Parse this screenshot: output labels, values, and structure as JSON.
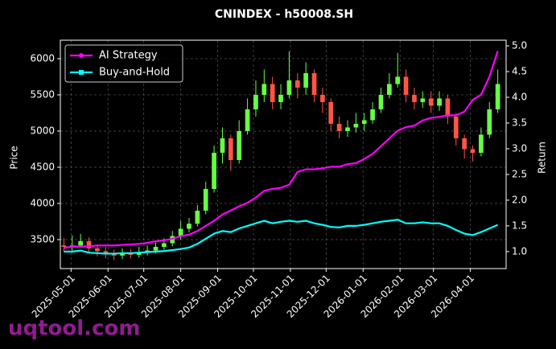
{
  "chart_data": {
    "type": "candlestick",
    "title": "CNINDEX - h50008.SH",
    "ylabel": "Price",
    "y2label": "Return",
    "watermark": "uqtool.com",
    "grid": true,
    "legend": "upper left",
    "up_color": "#66ff44",
    "down_color": "#ff5544",
    "xlim": [
      "2025-04-22",
      "2026-05-01"
    ],
    "xticks": [
      "2025-05-01",
      "2025-06-01",
      "2025-07-01",
      "2025-08-01",
      "2025-09-01",
      "2025-10-01",
      "2025-11-01",
      "2025-12-01",
      "2026-01-01",
      "2026-02-01",
      "2026-03-01",
      "2026-04-01"
    ],
    "ylim": [
      3100,
      6255
    ],
    "yticks": [
      3500,
      4000,
      4500,
      5000,
      5500,
      6000
    ],
    "y2lim": [
      0.67,
      5.11
    ],
    "y2ticks": [
      {
        "value": 1,
        "label": "1.0"
      },
      1.5,
      {
        "value": 2,
        "label": "2.0"
      },
      2.5,
      {
        "value": 3,
        "label": "3.0"
      },
      3.5,
      {
        "value": 4,
        "label": "4.0"
      },
      4.5,
      {
        "value": 5,
        "label": "5.0"
      }
    ],
    "x": [
      "2025-04-25",
      "2025-05-02",
      "2025-05-09",
      "2025-05-16",
      "2025-05-23",
      "2025-05-30",
      "2025-06-06",
      "2025-06-13",
      "2025-06-20",
      "2025-06-27",
      "2025-07-04",
      "2025-07-11",
      "2025-07-18",
      "2025-07-25",
      "2025-08-01",
      "2025-08-08",
      "2025-08-15",
      "2025-08-22",
      "2025-08-29",
      "2025-09-05",
      "2025-09-12",
      "2025-09-19",
      "2025-09-26",
      "2025-10-03",
      "2025-10-10",
      "2025-10-17",
      "2025-10-24",
      "2025-10-31",
      "2025-11-07",
      "2025-11-14",
      "2025-11-21",
      "2025-11-28",
      "2025-12-05",
      "2025-12-12",
      "2025-12-19",
      "2025-12-26",
      "2026-01-02",
      "2026-01-09",
      "2026-01-16",
      "2026-01-23",
      "2026-01-30",
      "2026-02-06",
      "2026-02-13",
      "2026-02-20",
      "2026-02-27",
      "2026-03-06",
      "2026-03-13",
      "2026-03-20",
      "2026-03-27",
      "2026-04-03",
      "2026-04-10",
      "2026-04-17",
      "2026-04-24"
    ],
    "open": [
      3420,
      3400,
      3420,
      3480,
      3380,
      3340,
      3300,
      3280,
      3310,
      3290,
      3330,
      3350,
      3400,
      3450,
      3550,
      3650,
      3720,
      3900,
      4200,
      4700,
      4900,
      4600,
      5000,
      5300,
      5500,
      5650,
      5400,
      5500,
      5700,
      5600,
      5800,
      5500,
      5400,
      5100,
      5000,
      5050,
      5100,
      5150,
      5300,
      5500,
      5650,
      5750,
      5500,
      5400,
      5450,
      5350,
      5450,
      5200,
      4900,
      4750,
      4700,
      4950,
      5300
    ],
    "high": [
      3520,
      3560,
      3580,
      3530,
      3430,
      3400,
      3360,
      3380,
      3370,
      3400,
      3420,
      3460,
      3520,
      3620,
      3760,
      3800,
      3980,
      4300,
      4800,
      5050,
      4950,
      5150,
      5450,
      5700,
      5850,
      5750,
      5650,
      6100,
      5800,
      5950,
      5850,
      5600,
      5450,
      5200,
      5150,
      5250,
      5250,
      5400,
      5600,
      5800,
      6080,
      5850,
      5600,
      5550,
      5550,
      5550,
      5500,
      5250,
      4950,
      4800,
      5050,
      5400,
      5850
    ],
    "low": [
      3330,
      3350,
      3390,
      3320,
      3270,
      3240,
      3220,
      3230,
      3240,
      3250,
      3280,
      3310,
      3360,
      3410,
      3500,
      3600,
      3680,
      3850,
      4150,
      4550,
      4450,
      4550,
      4950,
      5200,
      5400,
      5300,
      5300,
      5450,
      5450,
      5500,
      5400,
      5250,
      5000,
      4900,
      4920,
      4980,
      5000,
      5100,
      5250,
      5450,
      5600,
      5400,
      5300,
      5320,
      5250,
      5280,
      5100,
      4800,
      4620,
      4580,
      4650,
      4900,
      5250
    ],
    "close": [
      3400,
      3420,
      3480,
      3380,
      3340,
      3300,
      3280,
      3310,
      3290,
      3330,
      3350,
      3400,
      3450,
      3550,
      3650,
      3720,
      3900,
      4200,
      4700,
      4900,
      4600,
      5000,
      5300,
      5500,
      5650,
      5400,
      5500,
      5700,
      5600,
      5800,
      5500,
      5400,
      5100,
      5000,
      5050,
      5100,
      5150,
      5300,
      5500,
      5650,
      5750,
      5500,
      5400,
      5450,
      5350,
      5450,
      5200,
      4900,
      4750,
      4700,
      4950,
      5300,
      5650
    ],
    "series": [
      {
        "name": "AI Strategy",
        "color": "#ff00ff",
        "axis": "y2",
        "values": [
          1.07,
          1.1,
          1.1,
          1.1,
          1.12,
          1.12,
          1.12,
          1.13,
          1.14,
          1.15,
          1.17,
          1.2,
          1.22,
          1.25,
          1.3,
          1.33,
          1.4,
          1.5,
          1.6,
          1.72,
          1.8,
          1.88,
          1.95,
          2.05,
          2.18,
          2.22,
          2.24,
          2.3,
          2.55,
          2.6,
          2.6,
          2.62,
          2.65,
          2.65,
          2.7,
          2.72,
          2.8,
          2.9,
          3.05,
          3.2,
          3.35,
          3.42,
          3.45,
          3.55,
          3.6,
          3.62,
          3.65,
          3.65,
          3.72,
          3.95,
          4.05,
          4.4,
          4.9
        ]
      },
      {
        "name": "Buy-and-Hold",
        "color": "#00ffff",
        "axis": "y2",
        "values": [
          1.0,
          1.0,
          1.02,
          0.98,
          0.97,
          0.96,
          0.96,
          0.97,
          0.97,
          0.98,
          0.99,
          1.0,
          1.01,
          1.03,
          1.05,
          1.08,
          1.15,
          1.25,
          1.35,
          1.4,
          1.38,
          1.45,
          1.5,
          1.55,
          1.6,
          1.55,
          1.58,
          1.6,
          1.58,
          1.6,
          1.55,
          1.52,
          1.48,
          1.47,
          1.5,
          1.5,
          1.52,
          1.55,
          1.58,
          1.6,
          1.62,
          1.55,
          1.55,
          1.57,
          1.55,
          1.55,
          1.5,
          1.42,
          1.35,
          1.32,
          1.38,
          1.45,
          1.52
        ]
      }
    ]
  }
}
